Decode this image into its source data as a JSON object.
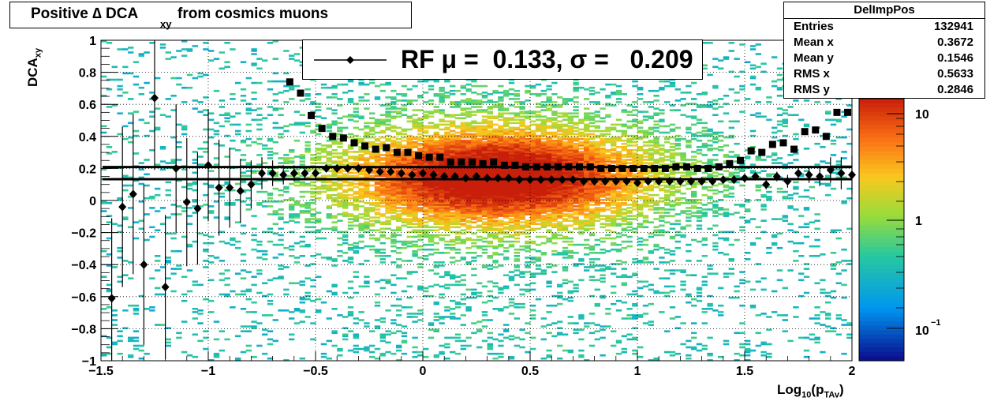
{
  "title": {
    "main": "Positive ∆ DCA",
    "sub": "xy",
    "rest": "from cosmics muons"
  },
  "stats_box": {
    "name": "DelImpPos",
    "rows": [
      {
        "label": "Entries",
        "value": "132941"
      },
      {
        "label": "Mean x",
        "value": "0.3672"
      },
      {
        "label": "Mean y",
        "value": "0.1546"
      },
      {
        "label": "RMS x",
        "value": "0.5633"
      },
      {
        "label": "RMS y",
        "value": "0.2846"
      }
    ]
  },
  "legend": {
    "text": "RF μ =  0.133, σ =   0.209"
  },
  "axes": {
    "ylabel_main": "DCA",
    "ylabel_sub": "xy",
    "xlabel_main": "Log",
    "xlabel_sub1": "10",
    "xlabel_mid": "(p",
    "xlabel_sub2": "TAv",
    "xlabel_end": ")"
  },
  "chart_data": {
    "type": "heatmap",
    "xlim": [
      -1.5,
      2
    ],
    "ylim": [
      -1,
      1
    ],
    "x_ticks": [
      "−1.5",
      "−1",
      "−0.5",
      "0",
      "0.5",
      "1",
      "1.5",
      "2"
    ],
    "y_ticks": [
      "1",
      "0.8",
      "0.6",
      "0.4",
      "0.2",
      "0",
      "−0.2",
      "−0.4",
      "−0.6",
      "−0.8",
      "−1"
    ],
    "z_scale": "log",
    "z_ticks": [
      "10",
      "1",
      "10−1"
    ],
    "grid": true,
    "horizontal_lines": [
      0.209,
      0.133
    ],
    "sigma_series": {
      "marker": "square",
      "x": [
        -0.62,
        -0.57,
        -0.52,
        -0.47,
        -0.42,
        -0.37,
        -0.32,
        -0.27,
        -0.22,
        -0.17,
        -0.12,
        -0.07,
        -0.02,
        0.03,
        0.08,
        0.13,
        0.18,
        0.23,
        0.28,
        0.33,
        0.38,
        0.43,
        0.48,
        0.53,
        0.58,
        0.63,
        0.68,
        0.73,
        0.78,
        0.83,
        0.88,
        0.93,
        0.98,
        1.03,
        1.08,
        1.13,
        1.18,
        1.23,
        1.28,
        1.33,
        1.38,
        1.43,
        1.48,
        1.53,
        1.58,
        1.63,
        1.68,
        1.73,
        1.78,
        1.83,
        1.88,
        1.93,
        1.98
      ],
      "y": [
        0.74,
        0.67,
        0.53,
        0.45,
        0.4,
        0.39,
        0.36,
        0.34,
        0.32,
        0.33,
        0.3,
        0.3,
        0.28,
        0.27,
        0.27,
        0.24,
        0.24,
        0.24,
        0.23,
        0.24,
        0.22,
        0.22,
        0.21,
        0.21,
        0.21,
        0.21,
        0.21,
        0.21,
        0.21,
        0.2,
        0.2,
        0.2,
        0.2,
        0.2,
        0.2,
        0.2,
        0.21,
        0.21,
        0.2,
        0.2,
        0.21,
        0.23,
        0.25,
        0.31,
        0.3,
        0.35,
        0.36,
        0.32,
        0.43,
        0.44,
        0.4,
        0.55,
        0.55
      ]
    },
    "mean_series": {
      "marker": "diamond",
      "x": [
        -1.45,
        -1.4,
        -1.35,
        -1.3,
        -1.25,
        -1.2,
        -1.15,
        -1.1,
        -1.05,
        -1.0,
        -0.95,
        -0.9,
        -0.85,
        -0.8,
        -0.75,
        -0.7,
        -0.65,
        -0.6,
        -0.55,
        -0.5,
        -0.45,
        -0.4,
        -0.35,
        -0.3,
        -0.25,
        -0.2,
        -0.15,
        -0.1,
        -0.05,
        0.0,
        0.05,
        0.1,
        0.15,
        0.2,
        0.25,
        0.3,
        0.35,
        0.4,
        0.45,
        0.5,
        0.55,
        0.6,
        0.65,
        0.7,
        0.75,
        0.8,
        0.85,
        0.9,
        0.95,
        1.0,
        1.05,
        1.1,
        1.15,
        1.2,
        1.25,
        1.3,
        1.35,
        1.4,
        1.45,
        1.5,
        1.55,
        1.6,
        1.65,
        1.7,
        1.75,
        1.8,
        1.85,
        1.9,
        1.95,
        2.0
      ],
      "y": [
        -0.61,
        -0.04,
        0.04,
        -0.4,
        0.64,
        -0.54,
        0.2,
        -0.01,
        -0.05,
        0.22,
        0.08,
        0.08,
        0.06,
        0.1,
        0.17,
        0.17,
        0.16,
        0.17,
        0.17,
        0.17,
        0.2,
        0.2,
        0.2,
        0.2,
        0.19,
        0.18,
        0.18,
        0.17,
        0.16,
        0.17,
        0.16,
        0.15,
        0.15,
        0.14,
        0.15,
        0.14,
        0.14,
        0.14,
        0.13,
        0.13,
        0.13,
        0.13,
        0.13,
        0.13,
        0.12,
        0.12,
        0.12,
        0.12,
        0.12,
        0.11,
        0.12,
        0.12,
        0.12,
        0.12,
        0.12,
        0.12,
        0.12,
        0.13,
        0.13,
        0.14,
        0.15,
        0.1,
        0.15,
        0.12,
        0.17,
        0.16,
        0.15,
        0.19,
        0.17,
        0.16
      ]
    },
    "mean_errors": [
      0.5,
      0.5,
      0.5,
      0.5,
      0.45,
      0.45,
      0.4,
      0.4,
      0.35,
      0.35,
      0.3,
      0.25,
      0.2,
      0.15,
      0.1,
      0.08,
      0.06,
      0.05,
      0.04,
      0.03,
      0.02,
      0.02,
      0.02,
      0.02,
      0.02,
      0.02,
      0.02,
      0.02,
      0.02,
      0.02,
      0.02,
      0.02,
      0.02,
      0.02,
      0.02,
      0.02,
      0.02,
      0.02,
      0.02,
      0.02,
      0.02,
      0.02,
      0.02,
      0.02,
      0.02,
      0.02,
      0.02,
      0.02,
      0.02,
      0.02,
      0.02,
      0.02,
      0.02,
      0.02,
      0.02,
      0.02,
      0.02,
      0.02,
      0.02,
      0.02,
      0.02,
      0.03,
      0.03,
      0.04,
      0.04,
      0.05,
      0.06,
      0.08,
      0.1,
      0.12
    ]
  }
}
